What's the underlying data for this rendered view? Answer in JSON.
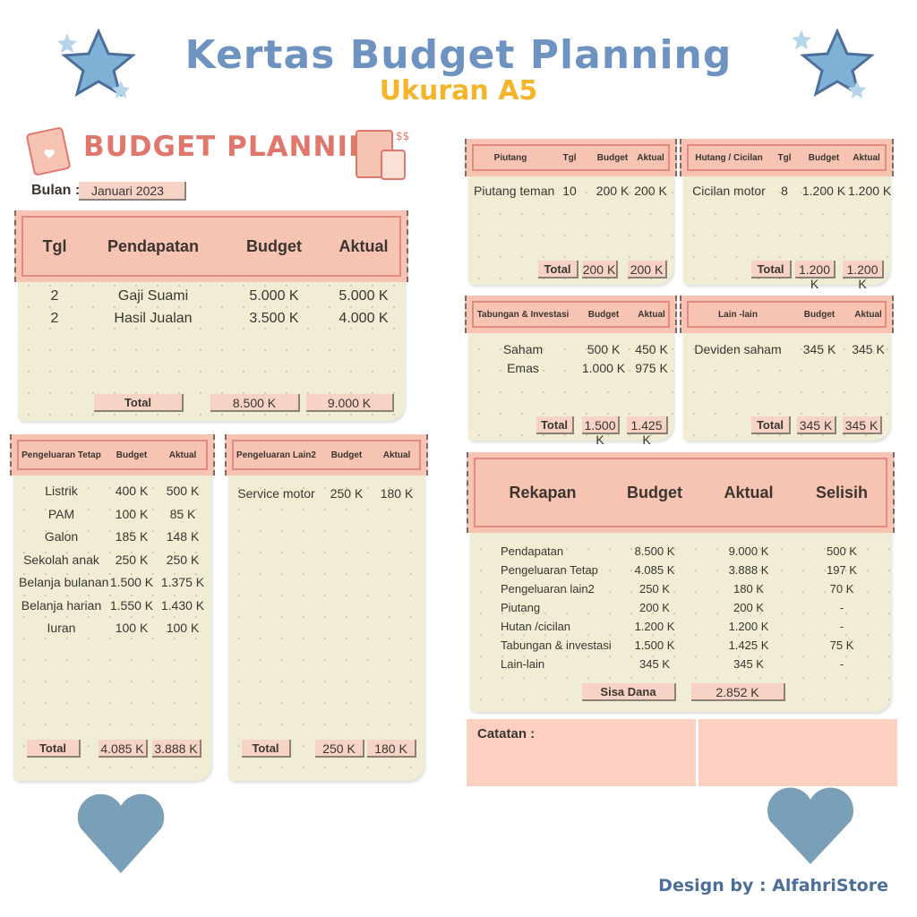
{
  "header": {
    "title": "Kertas Budget Planning",
    "subtitle": "Ukuran A5"
  },
  "sheet_title": "BUDGET PLANNING",
  "bulan": {
    "label": "Bulan :",
    "value": "Januari 2023"
  },
  "panels": {
    "pendapatan": {
      "columns": [
        "Tgl",
        "Pendapatan",
        "Budget",
        "Aktual"
      ],
      "rows": [
        [
          "2",
          "Gaji Suami",
          "5.000 K",
          "5.000 K"
        ],
        [
          "2",
          "Hasil Jualan",
          "3.500 K",
          "4.000 K"
        ]
      ],
      "total": [
        "Total",
        "8.500 K",
        "9.000 K"
      ]
    },
    "pengeluaran_tetap": {
      "columns": [
        "Pengeluaran Tetap",
        "Budget",
        "Aktual"
      ],
      "rows": [
        [
          "Listrik",
          "400 K",
          "500 K"
        ],
        [
          "PAM",
          "100 K",
          "85 K"
        ],
        [
          "Galon",
          "185 K",
          "148 K"
        ],
        [
          "Sekolah anak",
          "250 K",
          "250 K"
        ],
        [
          "Belanja bulanan",
          "1.500 K",
          "1.375 K"
        ],
        [
          "Belanja harian",
          "1.550 K",
          "1.430 K"
        ],
        [
          "Iuran",
          "100 K",
          "100 K"
        ]
      ],
      "total": [
        "Total",
        "4.085 K",
        "3.888 K"
      ]
    },
    "pengeluaran_lain2": {
      "columns": [
        "Pengeluaran Lain2",
        "Budget",
        "Aktual"
      ],
      "rows": [
        [
          "Service motor",
          "250 K",
          "180 K"
        ]
      ],
      "total": [
        "Total",
        "250 K",
        "180 K"
      ]
    },
    "piutang": {
      "columns": [
        "Piutang",
        "Tgl",
        "Budget",
        "Aktual"
      ],
      "rows": [
        [
          "Piutang teman",
          "10",
          "200 K",
          "200 K"
        ]
      ],
      "total": [
        "Total",
        "200 K",
        "200 K"
      ]
    },
    "hutang": {
      "columns": [
        "Hutang / Cicilan",
        "Tgl",
        "Budget",
        "Aktual"
      ],
      "rows": [
        [
          "Cicilan motor",
          "8",
          "1.200 K",
          "1.200 K"
        ]
      ],
      "total": [
        "Total",
        "1.200 K",
        "1.200 K"
      ]
    },
    "tabungan": {
      "columns": [
        "Tabungan & Investasi",
        "Budget",
        "Aktual"
      ],
      "rows": [
        [
          "Saham",
          "500 K",
          "450 K"
        ],
        [
          "Emas",
          "1.000 K",
          "975 K"
        ]
      ],
      "total": [
        "Total",
        "1.500 K",
        "1.425 K"
      ]
    },
    "lain_lain": {
      "columns": [
        "Lain -lain",
        "Budget",
        "Aktual"
      ],
      "rows": [
        [
          "Deviden saham",
          "345 K",
          "345 K"
        ]
      ],
      "total": [
        "Total",
        "345 K",
        "345 K"
      ]
    },
    "rekapan": {
      "columns": [
        "Rekapan",
        "Budget",
        "Aktual",
        "Selisih"
      ],
      "rows": [
        [
          "Pendapatan",
          "8.500 K",
          "9.000 K",
          "500 K"
        ],
        [
          "Pengeluaran Tetap",
          "4.085 K",
          "3.888 K",
          "197 K"
        ],
        [
          "Pengeluaran lain2",
          "250 K",
          "180 K",
          "70 K"
        ],
        [
          "Piutang",
          "200 K",
          "200 K",
          "-"
        ],
        [
          "Hutan /cicilan",
          "1.200 K",
          "1.200 K",
          "-"
        ],
        [
          "Tabungan & investasi",
          "1.500 K",
          "1.425 K",
          "75 K"
        ],
        [
          "Lain-lain",
          "345 K",
          "345 K",
          "-"
        ]
      ],
      "total": [
        "Sisa Dana",
        "2.852 K"
      ]
    }
  },
  "catatan": {
    "label": "Catatan :"
  },
  "credit": "Design by : AlfahriStore",
  "colors": {
    "title": "#6e93c0",
    "subtitle": "#f5b52a",
    "accent": "#e0776c",
    "header_band": "#f7c4b4",
    "paper": "#f1edd5",
    "heart": "#7a9fb8"
  }
}
